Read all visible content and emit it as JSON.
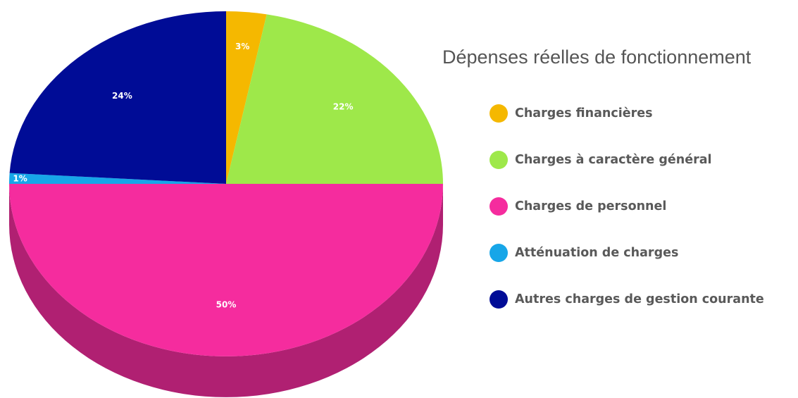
{
  "chart_data": {
    "type": "pie",
    "title": "Dépenses réelles de fonctionnement",
    "slices": [
      {
        "label": "Charges financières",
        "value": 3,
        "value_label": "3%",
        "color": "#F5B800"
      },
      {
        "label": "Charges à caractère général",
        "value": 22,
        "value_label": "22%",
        "color": "#9EE84A"
      },
      {
        "label": "Charges de personnel",
        "value": 50,
        "value_label": "50%",
        "color": "#F52C9E"
      },
      {
        "label": "Atténuation de charges",
        "value": 1,
        "value_label": "1%",
        "color": "#17A6E8"
      },
      {
        "label": "Autres charges de gestion courante",
        "value": 24,
        "value_label": "24%",
        "color": "#000C96"
      }
    ],
    "legend_position": "right",
    "style": "3d",
    "start_angle": "top"
  }
}
